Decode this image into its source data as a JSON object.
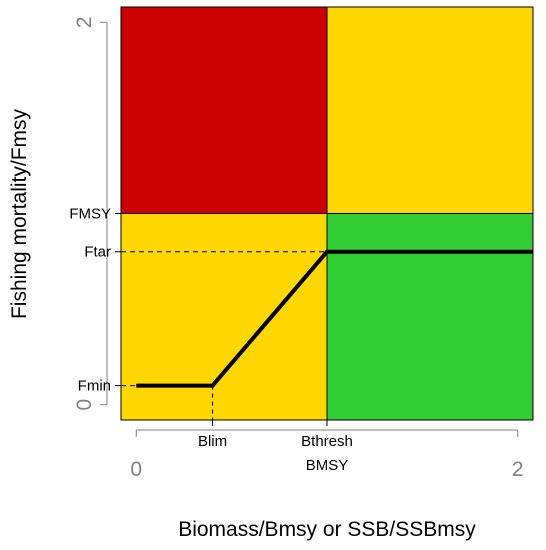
{
  "chart_data": {
    "type": "area",
    "xlabel": "Biomass/Bmsy or SSB/SSBmsy",
    "ylabel": "Fishing mortality/Fmsy",
    "xlim": [
      -0.08,
      2.08
    ],
    "ylim": [
      -0.08,
      2.08
    ],
    "x_ticks": [
      {
        "value": 0,
        "label": "0"
      },
      {
        "value": 2,
        "label": "2"
      }
    ],
    "y_ticks": [
      {
        "value": 0,
        "label": "0"
      },
      {
        "value": 2,
        "label": "2"
      }
    ],
    "reference_points": {
      "blim": {
        "value": 0.4,
        "label": "Blim"
      },
      "bthresh": {
        "value": 1.0,
        "label": "Bthresh"
      },
      "bmsy": {
        "value": 1.0,
        "label": "BMSY"
      },
      "fmsy": {
        "value": 1.0,
        "label": "FMSY"
      },
      "ftar": {
        "value": 0.8,
        "label": "Ftar"
      },
      "fmin": {
        "value": 0.1,
        "label": "Fmin"
      }
    },
    "zones": [
      {
        "x": [
          -0.08,
          1.0
        ],
        "y": [
          1.0,
          2.08
        ],
        "color": "#CC0000"
      },
      {
        "x": [
          1.0,
          2.08
        ],
        "y": [
          1.0,
          2.08
        ],
        "color": "#FFD700"
      },
      {
        "x": [
          -0.08,
          1.0
        ],
        "y": [
          -0.08,
          1.0
        ],
        "color": "#FFD700"
      },
      {
        "x": [
          1.0,
          2.08
        ],
        "y": [
          -0.08,
          1.0
        ],
        "color": "#32CD32"
      }
    ],
    "series": [
      {
        "x": [
          0,
          0.4,
          1.0,
          2.08
        ],
        "y": [
          0.1,
          0.1,
          0.8,
          0.8
        ],
        "color": "#000000"
      }
    ],
    "grid": false,
    "legend": "none"
  }
}
